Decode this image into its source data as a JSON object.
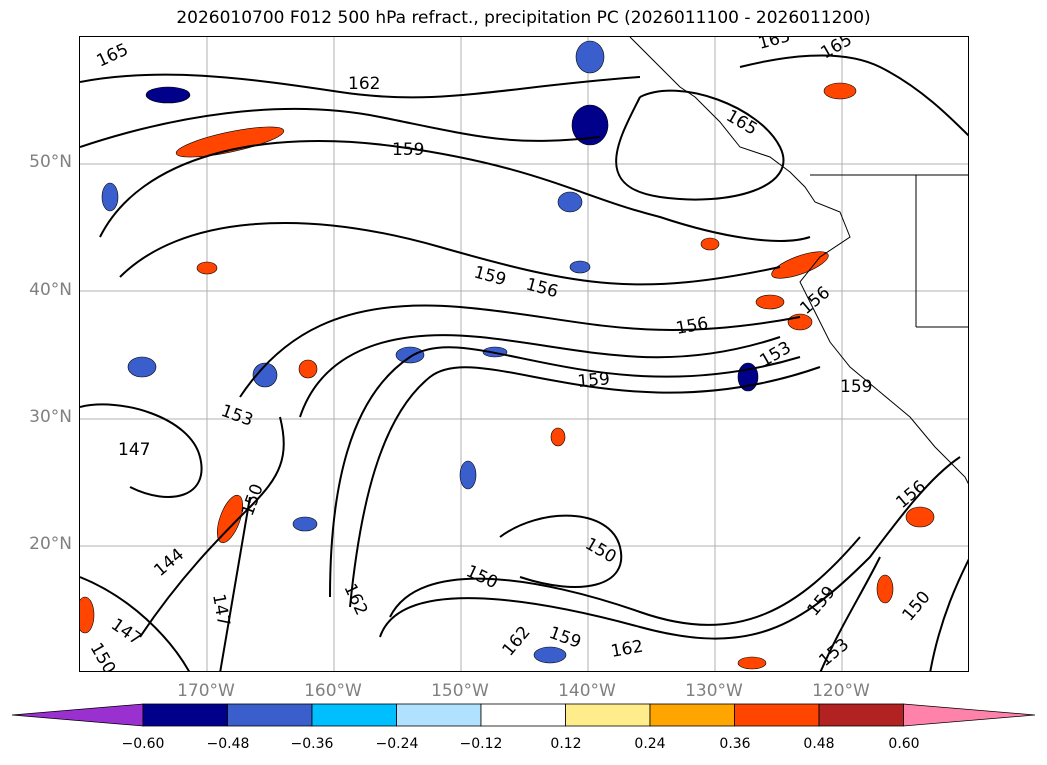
{
  "title": "2026010700 F012 500 hPa refract., precipitation PC (2026011100 - 2026011200)",
  "map": {
    "lat_labels": [
      "50°N",
      "40°N",
      "30°N",
      "20°N"
    ],
    "lon_labels": [
      "170°W",
      "160°W",
      "150°W",
      "140°W",
      "130°W",
      "120°W"
    ],
    "grid": true,
    "contour_color": "#000000",
    "contour_labels": [
      "165",
      "162",
      "159",
      "165",
      "165",
      "165",
      "159",
      "156",
      "156",
      "156",
      "153",
      "159",
      "159",
      "153",
      "147",
      "150",
      "144",
      "147",
      "150",
      "147",
      "150",
      "150",
      "162",
      "159",
      "162",
      "159",
      "153",
      "150",
      "156"
    ]
  },
  "colorbar": {
    "ticks": [
      "−0.60",
      "−0.48",
      "−0.36",
      "−0.24",
      "−0.12",
      "0.12",
      "0.24",
      "0.36",
      "0.48",
      "0.60"
    ],
    "colors": [
      "#9b30d0",
      "#00008b",
      "#3a5fcd",
      "#00bfff",
      "#b0e2ff",
      "#ffffff",
      "#ffec8b",
      "#ffa500",
      "#ff4500",
      "#b22222",
      "#ff82ab"
    ]
  }
}
